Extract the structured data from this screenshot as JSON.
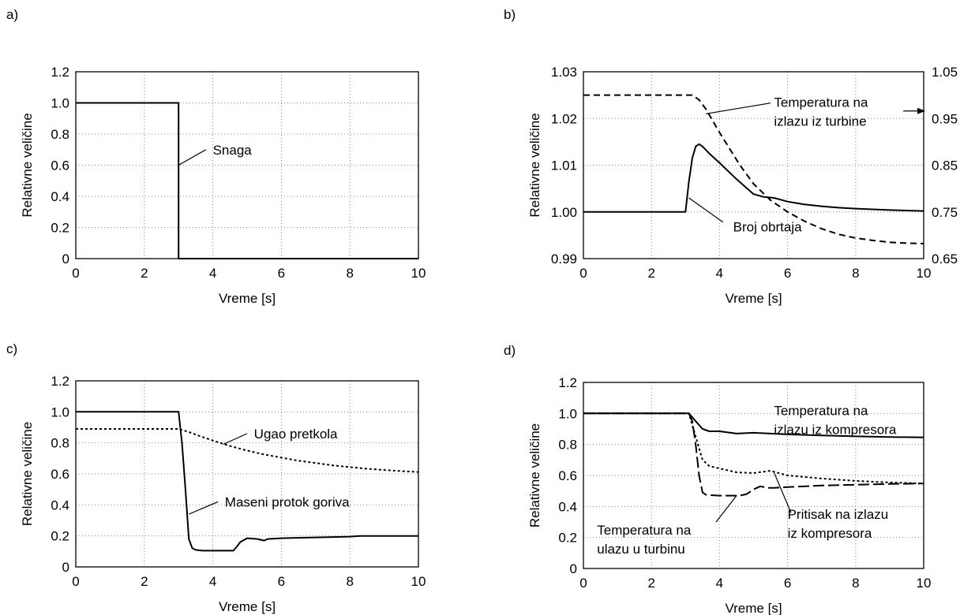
{
  "chart_data": [
    {
      "type": "line",
      "panel_label": "a)",
      "xlabel": "Vreme [s]",
      "ylabel": "Relativne veličine",
      "xlim": [
        0,
        10
      ],
      "ylim": [
        0,
        1.2
      ],
      "xticks": [
        "0",
        "2",
        "4",
        "6",
        "8",
        "10"
      ],
      "yticks": [
        "0",
        "0.2",
        "0.4",
        "0.6",
        "0.8",
        "1.0",
        "1.2"
      ],
      "grid": true,
      "series": [
        {
          "name": "Snaga",
          "style": "solid",
          "x": [
            0,
            3,
            3,
            10
          ],
          "y": [
            1.0,
            1.0,
            0,
            0
          ]
        }
      ],
      "annotations": [
        {
          "lines": [
            "Snaga"
          ],
          "text_x": 4.0,
          "text_y": 0.7,
          "pointer": [
            [
              3.0,
              0.6
            ],
            [
              3.8,
              0.7
            ]
          ]
        }
      ]
    },
    {
      "type": "line",
      "panel_label": "b)",
      "xlabel": "Vreme [s]",
      "ylabel": "Relativne veličine",
      "xlim": [
        0,
        10
      ],
      "ylim": [
        0.99,
        1.03
      ],
      "y2lim": [
        0.65,
        1.05
      ],
      "xticks": [
        "0",
        "2",
        "4",
        "6",
        "8",
        "10"
      ],
      "yticks": [
        "0.99",
        "1.00",
        "1.01",
        "1.02",
        "1.03"
      ],
      "y2ticks": [
        "0.65",
        "0.75",
        "0.85",
        "0.95",
        "1.05"
      ],
      "grid": true,
      "series": [
        {
          "name": "Broj obrtaja",
          "style": "solid",
          "axis": "left",
          "x": [
            0,
            3.0,
            3.1,
            3.2,
            3.3,
            3.4,
            3.5,
            3.7,
            4.0,
            4.5,
            5.0,
            5.3,
            5.6,
            5.8,
            6.0,
            6.5,
            7.0,
            7.5,
            8.0,
            9.0,
            10.0
          ],
          "y": [
            1.0,
            1.0,
            1.0065,
            1.0115,
            1.014,
            1.0145,
            1.014,
            1.0125,
            1.0105,
            1.007,
            1.0038,
            1.0032,
            1.003,
            1.0026,
            1.0022,
            1.0016,
            1.0012,
            1.0009,
            1.0007,
            1.0004,
            1.0002
          ]
        },
        {
          "name": "Temperatura na izlazu iz turbine",
          "style": "dashed",
          "axis": "right",
          "x": [
            0,
            3.2,
            3.4,
            3.6,
            3.8,
            4.0,
            4.3,
            4.6,
            5.0,
            5.5,
            6.0,
            6.5,
            7.0,
            7.5,
            8.0,
            8.5,
            9.0,
            9.5,
            10.0
          ],
          "y": [
            1.0,
            1.0,
            0.99,
            0.97,
            0.945,
            0.92,
            0.885,
            0.85,
            0.81,
            0.775,
            0.75,
            0.73,
            0.714,
            0.702,
            0.694,
            0.689,
            0.685,
            0.683,
            0.682
          ]
        }
      ],
      "annotations": [
        {
          "lines": [
            "Temperatura na",
            "izlazu iz turbine"
          ],
          "text_x": 5.6,
          "text_y": 1.0235,
          "pointer": [
            [
              3.6,
              1.021
            ],
            [
              5.5,
              1.0233
            ]
          ]
        },
        {
          "lines": [
            "Broj obrtaja"
          ],
          "text_x": 4.4,
          "text_y": 0.9968,
          "pointer": [
            [
              3.1,
              1.003
            ],
            [
              4.1,
              0.9978
            ]
          ]
        }
      ],
      "arrow": {
        "from": [
          9.4,
          1.0216
        ],
        "to": [
          10.0,
          1.0216
        ]
      }
    },
    {
      "type": "line",
      "panel_label": "c)",
      "xlabel": "Vreme [s]",
      "ylabel": "Relativne veličine",
      "xlim": [
        0,
        10
      ],
      "ylim": [
        0,
        1.2
      ],
      "xticks": [
        "0",
        "2",
        "4",
        "6",
        "8",
        "10"
      ],
      "yticks": [
        "0",
        "0.2",
        "0.4",
        "0.6",
        "0.8",
        "1.0",
        "1.2"
      ],
      "grid": true,
      "series": [
        {
          "name": "Maseni protok goriva",
          "style": "solid",
          "x": [
            0,
            3.0,
            3.1,
            3.2,
            3.3,
            3.4,
            3.5,
            3.7,
            4.0,
            4.6,
            4.7,
            4.8,
            5.0,
            5.3,
            5.5,
            5.6,
            6.0,
            7.0,
            8.0,
            8.3,
            10.0
          ],
          "y": [
            1.0,
            1.0,
            0.8,
            0.5,
            0.18,
            0.12,
            0.11,
            0.105,
            0.105,
            0.105,
            0.13,
            0.16,
            0.185,
            0.18,
            0.17,
            0.18,
            0.185,
            0.19,
            0.195,
            0.2,
            0.2
          ]
        },
        {
          "name": "Ugao pretkola",
          "style": "dotted",
          "x": [
            0,
            3.0,
            3.3,
            3.6,
            4.0,
            4.5,
            5.0,
            5.5,
            6.0,
            6.5,
            7.0,
            7.5,
            8.0,
            8.5,
            9.0,
            9.5,
            10.0
          ],
          "y": [
            0.89,
            0.89,
            0.87,
            0.845,
            0.815,
            0.78,
            0.75,
            0.725,
            0.705,
            0.685,
            0.67,
            0.655,
            0.643,
            0.633,
            0.625,
            0.618,
            0.612
          ]
        }
      ],
      "annotations": [
        {
          "lines": [
            "Ugao pretkola"
          ],
          "text_x": 5.2,
          "text_y": 0.86,
          "pointer": [
            [
              4.3,
              0.79
            ],
            [
              5.0,
              0.86
            ]
          ]
        },
        {
          "lines": [
            "Maseni protok goriva"
          ],
          "text_x": 4.35,
          "text_y": 0.42,
          "pointer": [
            [
              3.3,
              0.34
            ],
            [
              4.15,
              0.42
            ]
          ]
        }
      ]
    },
    {
      "type": "line",
      "panel_label": "d)",
      "xlabel": "Vreme [s]",
      "ylabel": "Relativne veličine",
      "xlim": [
        0,
        10
      ],
      "ylim": [
        0,
        1.2
      ],
      "xticks": [
        "0",
        "2",
        "4",
        "6",
        "8",
        "10"
      ],
      "yticks": [
        "0",
        "0.2",
        "0.4",
        "0.6",
        "0.8",
        "1.0",
        "1.2"
      ],
      "grid": true,
      "series": [
        {
          "name": "Temperatura na izlazu iz kompresora",
          "style": "solid",
          "x": [
            0,
            3.1,
            3.3,
            3.5,
            3.7,
            4.0,
            4.5,
            5.0,
            5.5,
            6.0,
            7.0,
            8.0,
            9.0,
            10.0
          ],
          "y": [
            1.0,
            1.0,
            0.95,
            0.9,
            0.885,
            0.885,
            0.87,
            0.875,
            0.87,
            0.865,
            0.858,
            0.852,
            0.848,
            0.845
          ]
        },
        {
          "name": "Pritisak na izlazu iz kompresora",
          "style": "dotted",
          "x": [
            0,
            3.1,
            3.3,
            3.5,
            3.7,
            4.0,
            4.5,
            5.0,
            5.5,
            6.0,
            7.0,
            8.0,
            9.0,
            10.0
          ],
          "y": [
            1.0,
            1.0,
            0.85,
            0.7,
            0.66,
            0.645,
            0.62,
            0.615,
            0.63,
            0.6,
            0.58,
            0.565,
            0.555,
            0.548
          ]
        },
        {
          "name": "Temperatura na ulazu u turbinu",
          "style": "longdash",
          "x": [
            0,
            3.1,
            3.2,
            3.3,
            3.4,
            3.5,
            3.6,
            4.0,
            4.6,
            4.8,
            5.0,
            5.2,
            5.4,
            5.6,
            6.0,
            7.0,
            8.0,
            9.0,
            10.0
          ],
          "y": [
            1.0,
            1.0,
            0.95,
            0.8,
            0.6,
            0.49,
            0.475,
            0.47,
            0.47,
            0.48,
            0.51,
            0.53,
            0.52,
            0.52,
            0.525,
            0.535,
            0.54,
            0.545,
            0.548
          ]
        }
      ],
      "annotations": [
        {
          "lines": [
            "Temperatura na",
            "izlazu iz kompresora"
          ],
          "text_x": 5.6,
          "text_y": 1.02,
          "pointer": null
        },
        {
          "lines": [
            "Pritisak na izlazu",
            "iz kompresora"
          ],
          "text_x": 6.0,
          "text_y": 0.35,
          "pointer": [
            [
              5.6,
              0.62
            ],
            [
              6.1,
              0.36
            ]
          ]
        },
        {
          "lines": [
            "Temperatura na",
            "ulazu u turbinu"
          ],
          "text_x": 0.4,
          "text_y": 0.25,
          "pointer": [
            [
              4.5,
              0.47
            ],
            [
              3.9,
              0.3
            ]
          ]
        }
      ]
    }
  ]
}
